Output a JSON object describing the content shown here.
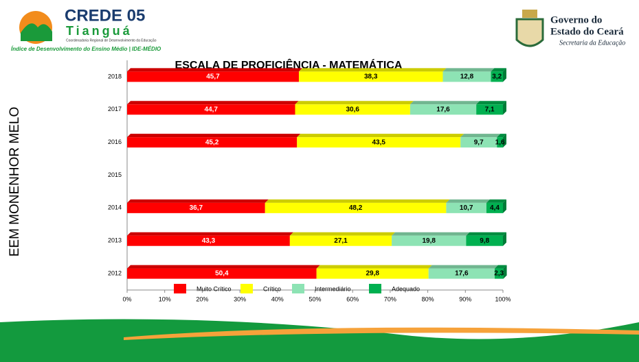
{
  "header": {
    "left_brand": "CREDE 05",
    "left_city": "Tianguá",
    "left_sub": "Coordenadoria Regional de Desenvolvimento da Educação",
    "left_tagline": "Índice de Desenvolvimento do Ensino Médio | IDE-MÉDIO",
    "right_line1": "Governo do",
    "right_line2": "Estado do Ceará",
    "right_line3": "Secretaria da Educação"
  },
  "chart_data": {
    "type": "stacked_bar_horizontal",
    "title": "ESCALA DE PROFICIÊNCIA - MATEMÁTICA",
    "y_label": "EEM MONENHOR MELO",
    "categories": [
      "2018",
      "2017",
      "2016",
      "2015",
      "2014",
      "2013",
      "2012"
    ],
    "series": [
      {
        "name": "Muito Crítico",
        "color": "#ff0000",
        "label_color": "#ffffff",
        "values": [
          45.7,
          44.7,
          45.2,
          null,
          36.7,
          43.3,
          50.4
        ],
        "value_labels": [
          "45,7",
          "44,7",
          "45,2",
          null,
          "36,7",
          "43,3",
          "50,4"
        ]
      },
      {
        "name": "Crítico",
        "color": "#ffff00",
        "label_color": "#000000",
        "values": [
          38.3,
          30.6,
          43.5,
          null,
          48.2,
          27.1,
          29.8
        ],
        "value_labels": [
          "38,3",
          "30,6",
          "43,5",
          null,
          "48,2",
          "27,1",
          "29,8"
        ]
      },
      {
        "name": "Intermediário",
        "color": "#8de3b4",
        "label_color": "#000000",
        "values": [
          12.8,
          17.6,
          9.7,
          null,
          10.7,
          19.8,
          17.6
        ],
        "value_labels": [
          "12,8",
          "17,6",
          "9,7",
          null,
          "10,7",
          "19,8",
          "17,6"
        ]
      },
      {
        "name": "Adequado",
        "color": "#00b050",
        "label_color": "#000000",
        "values": [
          3.2,
          7.1,
          1.6,
          null,
          4.4,
          9.8,
          2.3
        ],
        "value_labels": [
          "3,2",
          "7,1",
          "1,6",
          null,
          "4,4",
          "9,8",
          "2,3"
        ]
      }
    ],
    "xlim": [
      0,
      100
    ],
    "xticks": [
      {
        "value": 0,
        "label": "0%"
      },
      {
        "value": 10,
        "label": "10%"
      },
      {
        "value": 20,
        "label": "20%"
      },
      {
        "value": 30,
        "label": "30%"
      },
      {
        "value": 40,
        "label": "40%"
      },
      {
        "value": 50,
        "label": "50%"
      },
      {
        "value": 60,
        "label": "60%"
      },
      {
        "value": 70,
        "label": "70%"
      },
      {
        "value": 80,
        "label": "80%"
      },
      {
        "value": 90,
        "label": "90%"
      },
      {
        "value": 100,
        "label": "100%"
      }
    ],
    "grid": false,
    "legend": "bottom"
  }
}
